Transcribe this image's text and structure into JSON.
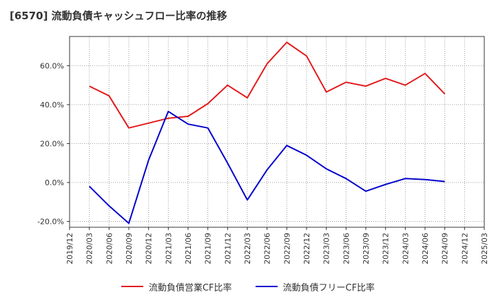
{
  "title": "[6570]  流動負債キャッシュフロー比率の推移",
  "chart_data": {
    "type": "line",
    "x": [
      "2019/12",
      "2020/03",
      "2020/06",
      "2020/09",
      "2020/12",
      "2021/03",
      "2021/06",
      "2021/09",
      "2021/12",
      "2022/03",
      "2022/06",
      "2022/09",
      "2022/12",
      "2023/03",
      "2023/06",
      "2023/09",
      "2023/12",
      "2024/03",
      "2024/06",
      "2024/09",
      "2024/12",
      "2025/03"
    ],
    "series": [
      {
        "name": "流動負債営業CF比率",
        "color": "#e31a1c",
        "values": [
          null,
          49.5,
          44.5,
          28.0,
          30.5,
          33.0,
          34.0,
          40.5,
          50.0,
          43.5,
          61.0,
          72.0,
          65.0,
          46.5,
          51.5,
          49.5,
          53.5,
          50.0,
          56.0,
          45.5,
          null,
          null
        ]
      },
      {
        "name": "流動負債フリーCF比率",
        "color": "#0000cc",
        "values": [
          null,
          -2.0,
          -12.0,
          -21.0,
          11.5,
          36.5,
          30.0,
          28.0,
          10.0,
          -9.0,
          6.5,
          19.0,
          14.0,
          7.0,
          2.0,
          -4.5,
          -1.0,
          2.0,
          1.5,
          0.5,
          null,
          null
        ]
      }
    ],
    "yticks": [
      -20,
      0,
      20,
      40,
      60
    ],
    "ytick_labels": [
      "-20.0%",
      "0.0%",
      "20.0%",
      "40.0%",
      "60.0%"
    ],
    "ylim": [
      -23,
      75
    ],
    "grid": true,
    "legend": "bottom"
  }
}
